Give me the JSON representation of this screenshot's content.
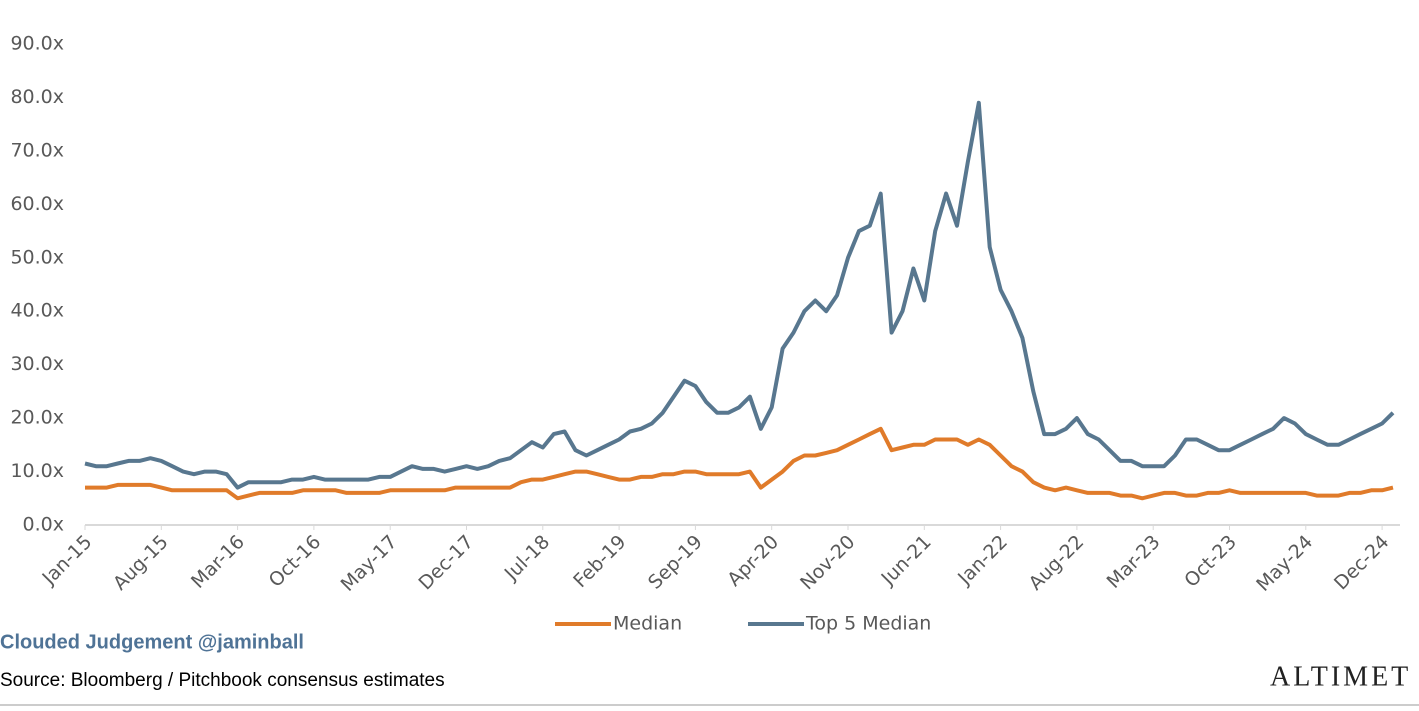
{
  "chart_data": {
    "type": "line",
    "categories": [
      "Jan-15",
      null,
      null,
      null,
      null,
      null,
      null,
      "Aug-15",
      null,
      null,
      null,
      null,
      null,
      null,
      "Mar-16",
      null,
      null,
      null,
      null,
      null,
      null,
      "Oct-16",
      null,
      null,
      null,
      null,
      null,
      null,
      "May-17",
      null,
      null,
      null,
      null,
      null,
      null,
      "Dec-17",
      null,
      null,
      null,
      null,
      null,
      null,
      "Jul-18",
      null,
      null,
      null,
      null,
      null,
      null,
      "Feb-19",
      null,
      null,
      null,
      null,
      null,
      null,
      "Sep-19",
      null,
      null,
      null,
      null,
      null,
      null,
      "Apr-20",
      null,
      null,
      null,
      null,
      null,
      null,
      "Nov-20",
      null,
      null,
      null,
      null,
      null,
      null,
      "Jun-21",
      null,
      null,
      null,
      null,
      null,
      null,
      "Jan-22",
      null,
      null,
      null,
      null,
      null,
      null,
      "Aug-22",
      null,
      null,
      null,
      null,
      null,
      null,
      "Mar-23",
      null,
      null,
      null,
      null,
      null,
      null,
      "Oct-23",
      null,
      null,
      null,
      null,
      null,
      null,
      "May-24",
      null,
      null,
      null,
      null,
      null,
      null,
      "Dec-24",
      null
    ],
    "series": [
      {
        "name": "Median",
        "color": "#e07b2a",
        "values": [
          7,
          7,
          7,
          7.5,
          7.5,
          7.5,
          7.5,
          7,
          6.5,
          6.5,
          6.5,
          6.5,
          6.5,
          6.5,
          5,
          5.5,
          6,
          6,
          6,
          6,
          6.5,
          6.5,
          6.5,
          6.5,
          6,
          6,
          6,
          6,
          6.5,
          6.5,
          6.5,
          6.5,
          6.5,
          6.5,
          7,
          7,
          7,
          7,
          7,
          7,
          8,
          8.5,
          8.5,
          9,
          9.5,
          10,
          10,
          9.5,
          9,
          8.5,
          8.5,
          9,
          9,
          9.5,
          9.5,
          10,
          10,
          9.5,
          9.5,
          9.5,
          9.5,
          10,
          7,
          8.5,
          10,
          12,
          13,
          13,
          13.5,
          14,
          15,
          16,
          17,
          18,
          14,
          14.5,
          15,
          15,
          16,
          16,
          16,
          15,
          16,
          15,
          13,
          11,
          10,
          8,
          7,
          6.5,
          7,
          6.5,
          6,
          6,
          6,
          5.5,
          5.5,
          5,
          5.5,
          6,
          6,
          5.5,
          5.5,
          6,
          6,
          6.5,
          6,
          6,
          6,
          6,
          6,
          6,
          6,
          5.5,
          5.5,
          5.5,
          6,
          6,
          6.5,
          6.5,
          7
        ]
      },
      {
        "name": "Top 5 Median",
        "color": "#58778f",
        "values": [
          11.5,
          11,
          11,
          11.5,
          12,
          12,
          12.5,
          12,
          11,
          10,
          9.5,
          10,
          10,
          9.5,
          7,
          8,
          8,
          8,
          8,
          8.5,
          8.5,
          9,
          8.5,
          8.5,
          8.5,
          8.5,
          8.5,
          9,
          9,
          10,
          11,
          10.5,
          10.5,
          10,
          10.5,
          11,
          10.5,
          11,
          12,
          12.5,
          14,
          15.5,
          14.5,
          17,
          17.5,
          14,
          13,
          14,
          15,
          16,
          17.5,
          18,
          19,
          21,
          24,
          27,
          26,
          23,
          21,
          21,
          22,
          24,
          18,
          22,
          33,
          36,
          40,
          42,
          40,
          43,
          50,
          55,
          56,
          62,
          36,
          40,
          48,
          42,
          55,
          62,
          56,
          68,
          79,
          52,
          44,
          40,
          35,
          25,
          17,
          17,
          18,
          20,
          17,
          16,
          14,
          12,
          12,
          11,
          11,
          11,
          13,
          16,
          16,
          15,
          14,
          14,
          15,
          16,
          17,
          18,
          20,
          19,
          17,
          16,
          15,
          15,
          16,
          17,
          18,
          19,
          21
        ]
      }
    ],
    "ylim": [
      0,
      90
    ],
    "yticks": [
      {
        "value": 0,
        "label": "0.0x"
      },
      {
        "value": 10,
        "label": "10.0x"
      },
      {
        "value": 20,
        "label": "20.0x"
      },
      {
        "value": 30,
        "label": "30.0x"
      },
      {
        "value": 40,
        "label": "40.0x"
      },
      {
        "value": 50,
        "label": "50.0x"
      },
      {
        "value": 60,
        "label": "60.0x"
      },
      {
        "value": 70,
        "label": "70.0x"
      },
      {
        "value": 80,
        "label": "80.0x"
      },
      {
        "value": 90,
        "label": "90.0x"
      }
    ],
    "legend": "bottom",
    "grid": false
  },
  "footer": {
    "brand": "Clouded Judgement @jaminball",
    "source": "Source: Bloomberg / Pitchbook consensus estimates",
    "logo": "ALTIMET"
  }
}
